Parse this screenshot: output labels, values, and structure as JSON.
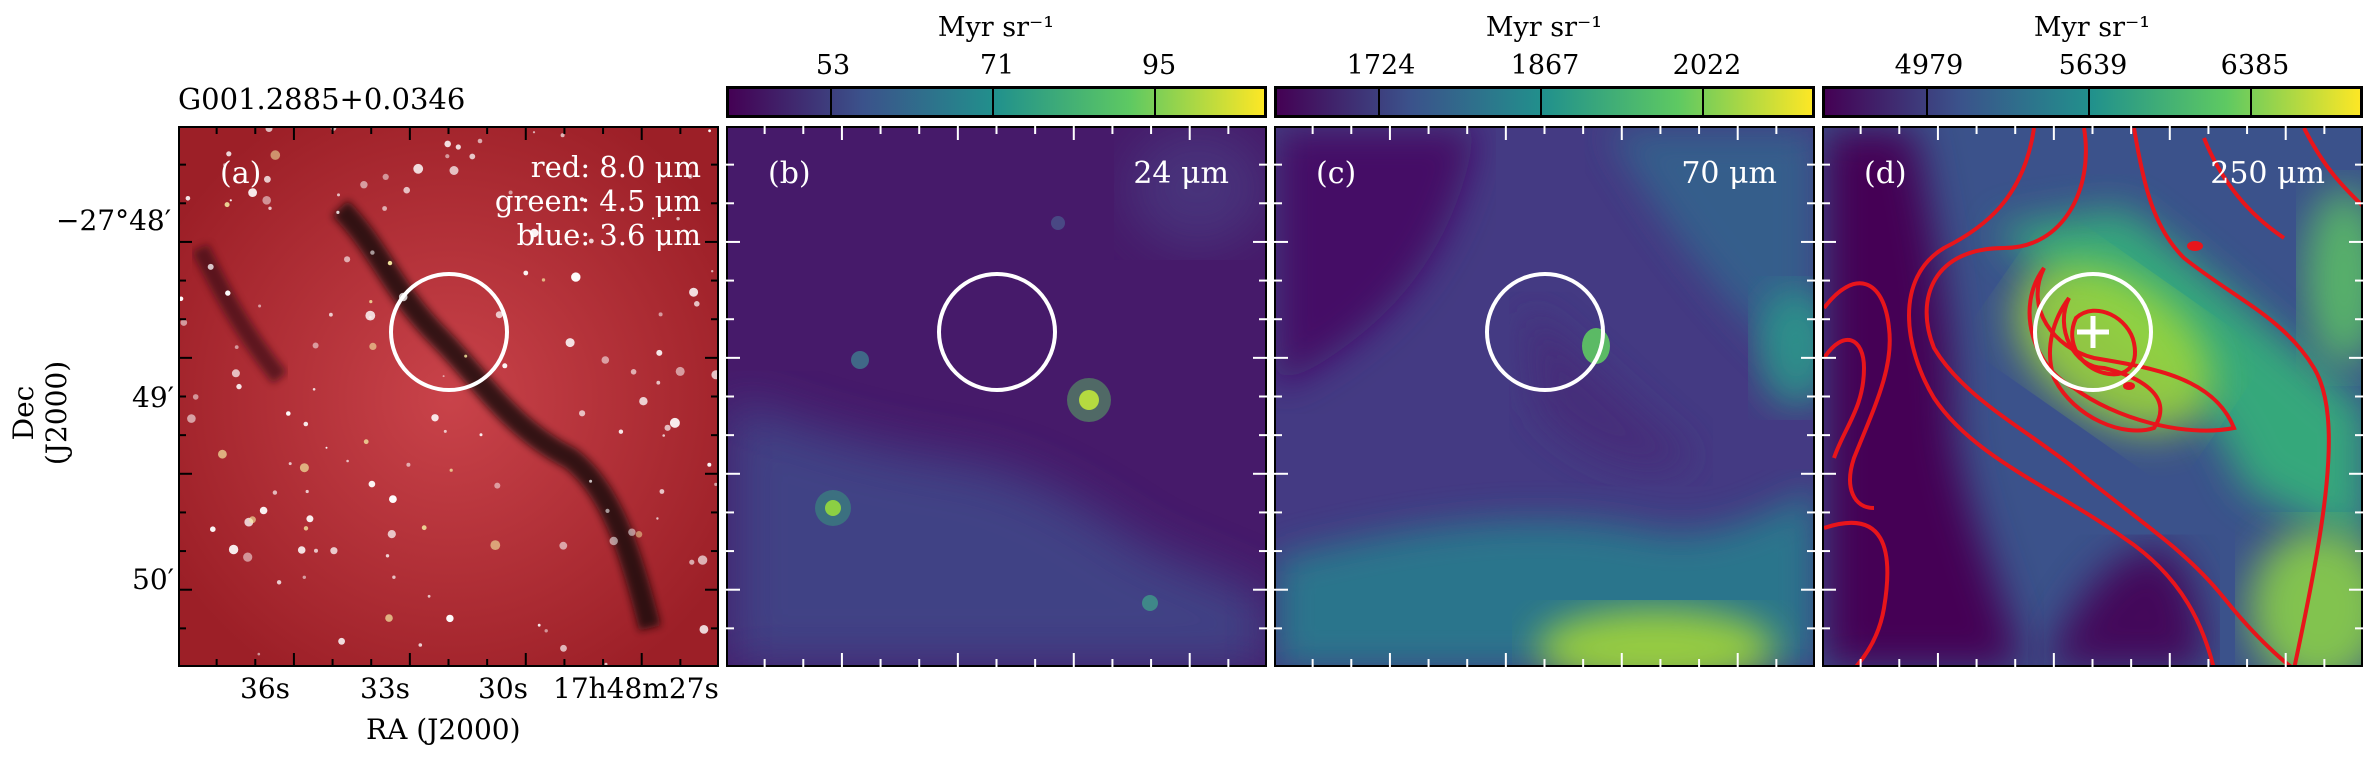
{
  "figure": {
    "source_name": "G001.2885+0.0346",
    "x_axis_label": "RA (J2000)",
    "y_axis_label": "Dec (J2000)",
    "ra_ticks": [
      "36s",
      "33s",
      "30s",
      "17h48m27s"
    ],
    "dec_ticks": [
      "−27°48′",
      "49′",
      "50′"
    ]
  },
  "panels": [
    {
      "id": "a",
      "label": "(a)",
      "legend": [
        "red: 8.0 μm",
        "green: 4.5 μm",
        "blue: 3.6 μm"
      ]
    },
    {
      "id": "b",
      "label": "(b)",
      "band": "24 μm",
      "colorbar": {
        "unit": "Myr sr⁻¹",
        "ticks": [
          "53",
          "71",
          "95"
        ]
      }
    },
    {
      "id": "c",
      "label": "(c)",
      "band": "70 μm",
      "colorbar": {
        "unit": "Myr sr⁻¹",
        "ticks": [
          "1724",
          "1867",
          "2022"
        ]
      }
    },
    {
      "id": "d",
      "label": "(d)",
      "band": "250 μm",
      "colorbar": {
        "unit": "Myr sr⁻¹",
        "ticks": [
          "4979",
          "5639",
          "6385"
        ]
      }
    }
  ],
  "colors": {
    "viridis_dark": "#440154",
    "viridis_mid": "#21918c",
    "viridis_light": "#fde725",
    "contour": "#e8151b",
    "marker": "#ffffff",
    "rgb_background": "#b2272f"
  }
}
